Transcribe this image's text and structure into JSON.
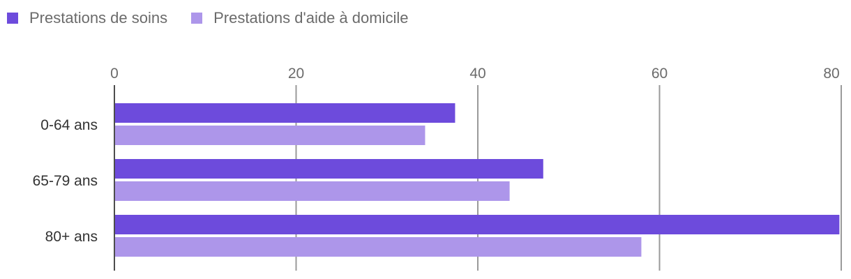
{
  "chart_data": {
    "type": "bar",
    "orientation": "horizontal",
    "categories": [
      "0-64 ans",
      "65-79 ans",
      "80+ ans"
    ],
    "series": [
      {
        "name": "Prestations de soins",
        "values": [
          37.5,
          47.2,
          79.8
        ],
        "color": "#6d4bdc"
      },
      {
        "name": "Prestations d'aide à domicile",
        "values": [
          34.2,
          43.5,
          58.0
        ],
        "color": "#ad96ea"
      }
    ],
    "xlim": [
      0,
      80
    ],
    "xticks": [
      "0",
      "20",
      "40",
      "60",
      "80"
    ],
    "grid": true,
    "legend_position": "top-left",
    "title": "",
    "xlabel": "",
    "ylabel": ""
  }
}
